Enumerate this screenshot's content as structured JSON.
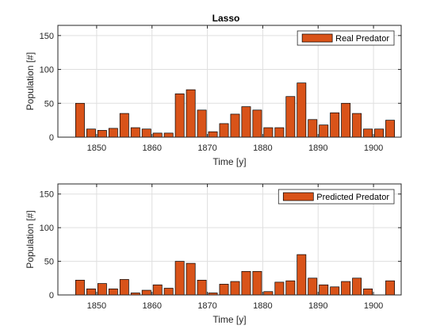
{
  "figure": {
    "title": "Lasso"
  },
  "chart_data": [
    {
      "type": "bar",
      "xlabel": "Time [y]",
      "ylabel": "Population [#]",
      "xlim": [
        1843,
        1905
      ],
      "ylim": [
        0,
        165
      ],
      "xticks": [
        1850,
        1860,
        1870,
        1880,
        1890,
        1900
      ],
      "yticks": [
        0,
        50,
        100,
        150
      ],
      "grid": true,
      "legend_position": "top-right",
      "series": [
        {
          "name": "Real Predator",
          "color": "#D95319",
          "x": [
            1847,
            1849,
            1851,
            1853,
            1855,
            1857,
            1859,
            1861,
            1863,
            1865,
            1867,
            1869,
            1871,
            1873,
            1875,
            1877,
            1879,
            1881,
            1883,
            1885,
            1887,
            1889,
            1891,
            1893,
            1895,
            1897,
            1899,
            1901,
            1903
          ],
          "values": [
            50,
            12,
            10,
            13,
            35,
            14,
            12,
            6,
            6,
            64,
            70,
            40,
            8,
            20,
            34,
            45,
            40,
            14,
            14,
            60,
            80,
            26,
            18,
            36,
            50,
            35,
            12,
            12,
            25
          ]
        }
      ]
    },
    {
      "type": "bar",
      "xlabel": "Time [y]",
      "ylabel": "Population [#]",
      "xlim": [
        1843,
        1905
      ],
      "ylim": [
        0,
        165
      ],
      "xticks": [
        1850,
        1860,
        1870,
        1880,
        1890,
        1900
      ],
      "yticks": [
        0,
        50,
        100,
        150
      ],
      "grid": true,
      "legend_position": "top-right",
      "series": [
        {
          "name": "Predicted Predator",
          "color": "#D95319",
          "x": [
            1847,
            1849,
            1851,
            1853,
            1855,
            1857,
            1859,
            1861,
            1863,
            1865,
            1867,
            1869,
            1871,
            1873,
            1875,
            1877,
            1879,
            1881,
            1883,
            1885,
            1887,
            1889,
            1891,
            1893,
            1895,
            1897,
            1899,
            1901,
            1903
          ],
          "values": [
            22,
            9,
            17,
            9,
            23,
            3,
            7,
            15,
            10,
            50,
            47,
            22,
            3,
            16,
            20,
            35,
            35,
            5,
            19,
            21,
            60,
            25,
            15,
            12,
            20,
            25,
            9,
            0,
            21
          ]
        }
      ]
    }
  ]
}
